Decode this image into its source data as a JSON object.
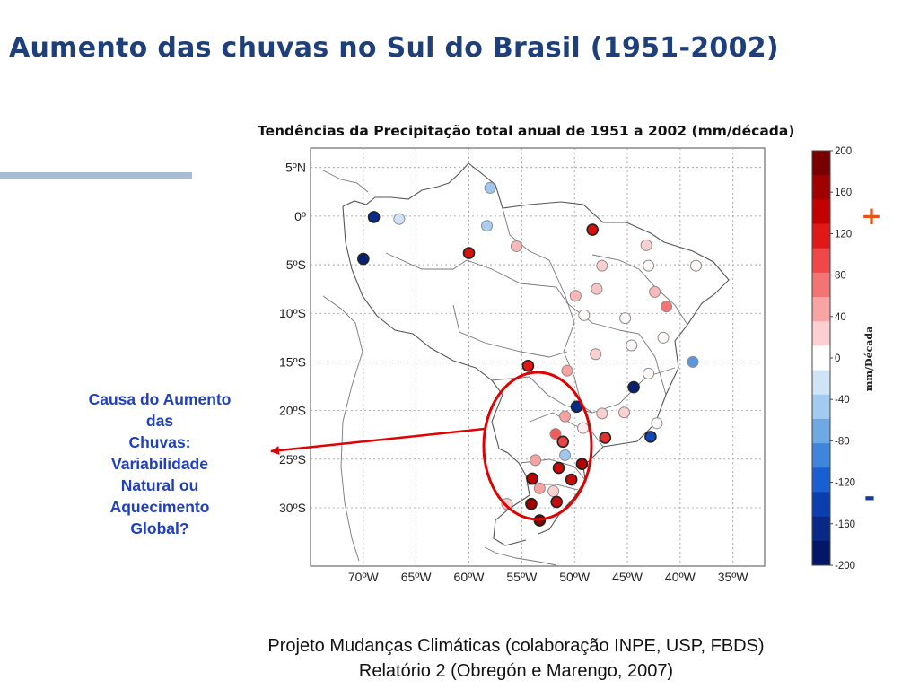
{
  "slide": {
    "title": "Aumento das chuvas no Sul do Brasil (1951-2002)",
    "accent_color": "#a7bdd6"
  },
  "map": {
    "title": "Tendências da Precipitação  total anual de 1951 a 2002 (mm/década)",
    "lat_labels": [
      "5ºN",
      "0º",
      "5ºS",
      "10ºS",
      "15ºS",
      "20ºS",
      "25ºS",
      "30ºS"
    ],
    "lon_labels": [
      "70ºW",
      "65ºW",
      "60ºW",
      "55ºW",
      "50ºW",
      "45ºW",
      "40ºW",
      "35ºW"
    ],
    "highlight_color": "#e00000"
  },
  "colorbar": {
    "title": "mm/Década",
    "tick_labels": [
      "200",
      "160",
      "120",
      "80",
      "40",
      "0",
      "-40",
      "-80",
      "-120",
      "-160",
      "-200"
    ],
    "colors": [
      "#7a0000",
      "#a00000",
      "#c40000",
      "#e01818",
      "#f04848",
      "#f47474",
      "#f8a4a4",
      "#fcd0d0",
      "#ffffff",
      "#cfe4f7",
      "#a3caef",
      "#6ea9e4",
      "#3d86dc",
      "#1a5fd1",
      "#0b3fb0",
      "#082a86",
      "#041668"
    ],
    "plus_symbol": "+",
    "minus_symbol": "-"
  },
  "chart_data": {
    "type": "scatter",
    "title": "Tendências da Precipitação  total anual de 1951 a 2002 (mm/década)",
    "xlabel": "",
    "ylabel": "",
    "xlim": [
      -75,
      -32
    ],
    "ylim": [
      -36,
      7
    ],
    "value_range": [
      -200,
      200
    ],
    "points": [
      {
        "lon": -69.0,
        "lat": -0.1,
        "trend": -180
      },
      {
        "lon": -66.6,
        "lat": -0.3,
        "trend": -40
      },
      {
        "lon": -58.0,
        "lat": 2.9,
        "trend": -60
      },
      {
        "lon": -58.3,
        "lat": -1.0,
        "trend": -55
      },
      {
        "lon": -55.5,
        "lat": -3.1,
        "trend": 50
      },
      {
        "lon": -70.0,
        "lat": -4.4,
        "trend": -190
      },
      {
        "lon": -60.0,
        "lat": -3.8,
        "trend": 130
      },
      {
        "lon": -48.3,
        "lat": -1.4,
        "trend": 130
      },
      {
        "lon": -43.2,
        "lat": -3.0,
        "trend": 40
      },
      {
        "lon": -47.4,
        "lat": -5.1,
        "trend": 40
      },
      {
        "lon": -47.9,
        "lat": -7.5,
        "trend": 45
      },
      {
        "lon": -49.9,
        "lat": -8.2,
        "trend": 50
      },
      {
        "lon": -43.0,
        "lat": -5.1,
        "trend": 5
      },
      {
        "lon": -38.5,
        "lat": -5.1,
        "trend": 5
      },
      {
        "lon": -42.4,
        "lat": -7.8,
        "trend": 50
      },
      {
        "lon": -41.3,
        "lat": -9.3,
        "trend": 80
      },
      {
        "lon": -49.1,
        "lat": -10.2,
        "trend": 5
      },
      {
        "lon": -45.2,
        "lat": -10.5,
        "trend": 5
      },
      {
        "lon": -41.6,
        "lat": -12.5,
        "trend": 5
      },
      {
        "lon": -48.0,
        "lat": -14.2,
        "trend": 40
      },
      {
        "lon": -44.6,
        "lat": -13.3,
        "trend": 5
      },
      {
        "lon": -38.8,
        "lat": -15.0,
        "trend": -90
      },
      {
        "lon": -54.4,
        "lat": -15.4,
        "trend": 120
      },
      {
        "lon": -50.7,
        "lat": -15.9,
        "trend": 60
      },
      {
        "lon": -43.0,
        "lat": -16.2,
        "trend": 5
      },
      {
        "lon": -44.4,
        "lat": -17.6,
        "trend": -190
      },
      {
        "lon": -49.8,
        "lat": -19.6,
        "trend": -180
      },
      {
        "lon": -50.9,
        "lat": -20.6,
        "trend": 60
      },
      {
        "lon": -47.4,
        "lat": -20.3,
        "trend": 40
      },
      {
        "lon": -45.3,
        "lat": -20.2,
        "trend": 40
      },
      {
        "lon": -42.2,
        "lat": -21.3,
        "trend": 5
      },
      {
        "lon": -49.2,
        "lat": -21.8,
        "trend": 15
      },
      {
        "lon": -51.8,
        "lat": -22.4,
        "trend": 90
      },
      {
        "lon": -51.1,
        "lat": -23.2,
        "trend": 100
      },
      {
        "lon": -47.1,
        "lat": -22.8,
        "trend": 110
      },
      {
        "lon": -42.8,
        "lat": -22.7,
        "trend": -150
      },
      {
        "lon": -50.9,
        "lat": -24.6,
        "trend": -60
      },
      {
        "lon": -53.7,
        "lat": -25.1,
        "trend": 60
      },
      {
        "lon": -51.5,
        "lat": -25.9,
        "trend": 140
      },
      {
        "lon": -49.3,
        "lat": -25.5,
        "trend": 160
      },
      {
        "lon": -54.0,
        "lat": -27.0,
        "trend": 150
      },
      {
        "lon": -50.3,
        "lat": -27.1,
        "trend": 140
      },
      {
        "lon": -53.3,
        "lat": -28.0,
        "trend": 60
      },
      {
        "lon": -52.0,
        "lat": -28.3,
        "trend": 40
      },
      {
        "lon": -54.1,
        "lat": -29.6,
        "trend": 170
      },
      {
        "lon": -51.7,
        "lat": -29.4,
        "trend": 140
      },
      {
        "lon": -56.4,
        "lat": -29.6,
        "trend": 40
      },
      {
        "lon": -53.3,
        "lat": -31.3,
        "trend": 190
      }
    ]
  },
  "annotation": {
    "lines": [
      "Causa do Aumento",
      "das",
      "Chuvas:",
      "Variabilidade",
      "Natural ou",
      "Aquecimento",
      "Global?"
    ],
    "color": "#1f3fbf"
  },
  "source": {
    "line1": "Projeto Mudanças Climáticas (colaboração INPE, USP, FBDS)",
    "line2": "Relatório 2 (Obregón e Marengo, 2007)"
  }
}
